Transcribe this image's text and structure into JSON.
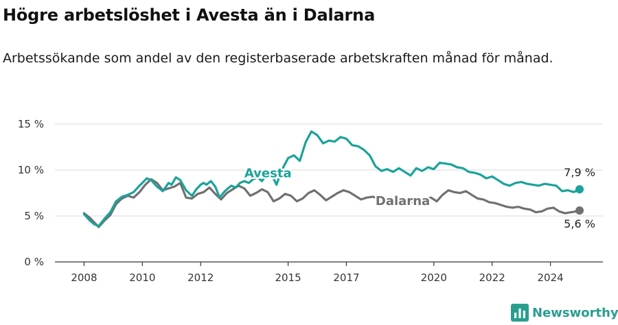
{
  "title": "Högre arbetslöshet i Avesta än i Dalarna",
  "subtitle": "Arbetssökande som andel av den registerbaserade arbetskraften månad för månad.",
  "brand": {
    "name": "Newsworthy",
    "icon": "newsworthy-logo-icon",
    "color": "#2a9d8f"
  },
  "colors": {
    "avesta": "#1aa39a",
    "dalarna": "#707070",
    "grid": "#d9d9d9",
    "axis": "#333333"
  },
  "chart_data": {
    "type": "line",
    "title": "",
    "xlabel": "",
    "ylabel": "",
    "xlim": [
      2007.0,
      2025.8
    ],
    "ylim": [
      0,
      15
    ],
    "yticks": [
      {
        "value": 0,
        "label": "0 %"
      },
      {
        "value": 5,
        "label": "5 %"
      },
      {
        "value": 10,
        "label": "10 %"
      },
      {
        "value": 15,
        "label": "15 %"
      }
    ],
    "xticks": [
      {
        "value": 2008,
        "label": "2008"
      },
      {
        "value": 2010,
        "label": "2010"
      },
      {
        "value": 2012,
        "label": "2012"
      },
      {
        "value": 2015,
        "label": "2015"
      },
      {
        "value": 2017,
        "label": "2017"
      },
      {
        "value": 2020,
        "label": "2020"
      },
      {
        "value": 2022,
        "label": "2022"
      },
      {
        "value": 2024,
        "label": "2024"
      }
    ],
    "grid": true,
    "series": [
      {
        "name": "Avesta",
        "color": "#1aa39a",
        "end_label": "7,9 %",
        "x": [
          2008.0,
          2008.2,
          2008.35,
          2008.5,
          2008.7,
          2008.9,
          2009.1,
          2009.3,
          2009.5,
          2009.7,
          2009.9,
          2010.0,
          2010.15,
          2010.3,
          2010.5,
          2010.7,
          2010.9,
          2011.0,
          2011.15,
          2011.3,
          2011.5,
          2011.7,
          2011.85,
          2012.0,
          2012.1,
          2012.2,
          2012.35,
          2012.5,
          2012.65,
          2012.8,
          2012.9,
          2013.05,
          2013.2,
          2013.35,
          2013.5,
          2013.65,
          2013.8,
          2013.95,
          2014.1,
          2014.25,
          2014.4,
          2014.5,
          2014.6,
          2014.8,
          2015.0,
          2015.2,
          2015.4,
          2015.6,
          2015.8,
          2016.0,
          2016.2,
          2016.4,
          2016.6,
          2016.8,
          2017.0,
          2017.2,
          2017.4,
          2017.6,
          2017.8,
          2018.0,
          2018.2,
          2018.4,
          2018.6,
          2018.8,
          2019.0,
          2019.2,
          2019.4,
          2019.6,
          2019.8,
          2020.0,
          2020.2,
          2020.4,
          2020.6,
          2020.8,
          2021.0,
          2021.2,
          2021.4,
          2021.6,
          2021.8,
          2022.0,
          2022.2,
          2022.4,
          2022.6,
          2022.8,
          2023.0,
          2023.2,
          2023.4,
          2023.6,
          2023.8,
          2024.0,
          2024.2,
          2024.4,
          2024.6,
          2024.8,
          2025.0
        ],
        "y": [
          5.2,
          4.5,
          4.1,
          3.9,
          4.7,
          5.4,
          6.6,
          7.1,
          7.3,
          7.6,
          8.3,
          8.6,
          9.1,
          8.9,
          8.2,
          7.7,
          8.6,
          8.4,
          9.2,
          8.9,
          7.8,
          7.2,
          7.9,
          8.4,
          8.6,
          8.4,
          8.8,
          8.2,
          7.0,
          7.6,
          7.9,
          8.3,
          8.1,
          8.6,
          8.8,
          8.6,
          9.0,
          9.2,
          8.8,
          9.4,
          9.8,
          9.1,
          8.4,
          10.1,
          11.3,
          11.6,
          11.0,
          13.0,
          14.2,
          13.8,
          12.9,
          13.2,
          13.1,
          13.6,
          13.4,
          12.7,
          12.6,
          12.2,
          11.6,
          10.4,
          9.9,
          10.1,
          9.8,
          10.2,
          9.8,
          9.4,
          10.2,
          9.9,
          10.3,
          10.1,
          10.8,
          10.7,
          10.6,
          10.3,
          10.2,
          9.8,
          9.7,
          9.5,
          9.1,
          9.3,
          8.9,
          8.5,
          8.3,
          8.6,
          8.7,
          8.5,
          8.4,
          8.3,
          8.5,
          8.4,
          8.3,
          7.7,
          7.8,
          7.6,
          7.9
        ]
      },
      {
        "name": "Dalarna",
        "color": "#707070",
        "end_label": "5,6 %",
        "x": [
          2008.0,
          2008.2,
          2008.35,
          2008.5,
          2008.7,
          2008.9,
          2009.1,
          2009.3,
          2009.5,
          2009.7,
          2009.9,
          2010.1,
          2010.3,
          2010.5,
          2010.7,
          2010.9,
          2011.1,
          2011.3,
          2011.5,
          2011.7,
          2011.9,
          2012.1,
          2012.3,
          2012.5,
          2012.7,
          2012.9,
          2013.1,
          2013.3,
          2013.5,
          2013.7,
          2013.9,
          2014.1,
          2014.3,
          2014.5,
          2014.7,
          2014.9,
          2015.1,
          2015.3,
          2015.5,
          2015.7,
          2015.9,
          2016.1,
          2016.3,
          2016.5,
          2016.7,
          2016.9,
          2017.1,
          2017.3,
          2017.5,
          2017.7,
          2017.9,
          2018.1,
          2018.3,
          2018.5,
          2018.7,
          2018.9,
          2019.1,
          2019.3,
          2019.5,
          2019.7,
          2019.9,
          2020.1,
          2020.3,
          2020.5,
          2020.7,
          2020.9,
          2021.1,
          2021.3,
          2021.5,
          2021.7,
          2021.9,
          2022.1,
          2022.3,
          2022.5,
          2022.7,
          2022.9,
          2023.1,
          2023.3,
          2023.5,
          2023.7,
          2023.9,
          2024.1,
          2024.3,
          2024.5,
          2024.7,
          2024.9,
          2025.0
        ],
        "y": [
          5.3,
          4.8,
          4.3,
          3.8,
          4.5,
          5.1,
          6.3,
          6.9,
          7.2,
          7.0,
          7.6,
          8.4,
          9.0,
          8.6,
          7.8,
          8.0,
          8.2,
          8.6,
          7.0,
          6.9,
          7.4,
          7.6,
          8.1,
          7.4,
          6.8,
          7.5,
          7.9,
          8.3,
          8.0,
          7.2,
          7.5,
          7.9,
          7.6,
          6.6,
          6.9,
          7.4,
          7.2,
          6.6,
          6.9,
          7.5,
          7.8,
          7.3,
          6.7,
          7.1,
          7.5,
          7.8,
          7.6,
          7.2,
          6.8,
          7.0,
          7.1,
          6.9,
          6.6,
          6.7,
          6.9,
          7.0,
          6.8,
          6.4,
          6.6,
          6.9,
          7.0,
          6.6,
          7.3,
          7.8,
          7.6,
          7.5,
          7.7,
          7.3,
          6.9,
          6.8,
          6.5,
          6.4,
          6.2,
          6.0,
          5.9,
          6.0,
          5.8,
          5.7,
          5.4,
          5.5,
          5.8,
          5.9,
          5.5,
          5.3,
          5.4,
          5.5,
          5.6
        ]
      }
    ],
    "annotations": [
      {
        "text": "Avesta",
        "series": "Avesta",
        "x": 2013.5,
        "y": 9.2
      },
      {
        "text": "Dalarna",
        "series": "Dalarna",
        "x": 2018.0,
        "y": 6.2
      }
    ]
  }
}
